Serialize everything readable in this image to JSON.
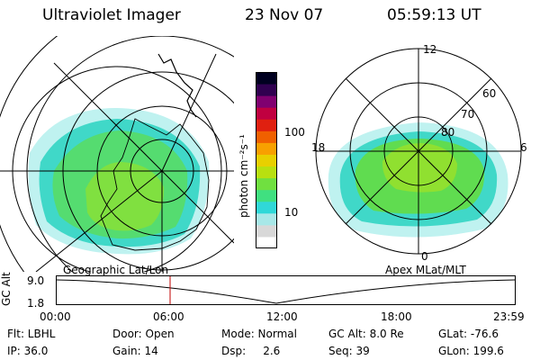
{
  "header": {
    "instrument": "Ultraviolet Imager",
    "date": "23 Nov 07",
    "time": "05:59:13 UT"
  },
  "left_panel": {
    "label": "Geographic Lat/Lon"
  },
  "right_panel": {
    "label": "Apex MLat/MLT",
    "mlt_labels": [
      "12",
      "18",
      "6",
      "0"
    ],
    "lat_labels": [
      "60",
      "70",
      "80"
    ]
  },
  "colorbar": {
    "unit_label": "photon cm⁻²s⁻¹",
    "tick_labels": [
      "100",
      "10"
    ],
    "colors": [
      "#ffffff",
      "#d8d8d8",
      "#a8e8e8",
      "#30d8d8",
      "#40e080",
      "#70e040",
      "#b8e010",
      "#e8d000",
      "#f8a000",
      "#f06000",
      "#e02010",
      "#c00040",
      "#800070",
      "#300050",
      "#000020"
    ]
  },
  "altitude_plot": {
    "ylabel": "GC Alt",
    "yticks": [
      "9.0",
      "1.8"
    ],
    "xticks": [
      "00:00",
      "06:00",
      "12:00",
      "18:00",
      "23:59"
    ],
    "marker_color": "#c00000"
  },
  "footer": {
    "rows": [
      [
        "Flt: LBHL",
        "Door: Open",
        "Mode: Normal",
        "GC Alt: 8.0 Re",
        "GLat: -76.6"
      ],
      [
        "IP: 36.0",
        "Gain: 14",
        "Dsp:     2.6",
        "Seq: 39",
        "GLon: 199.6"
      ]
    ]
  }
}
